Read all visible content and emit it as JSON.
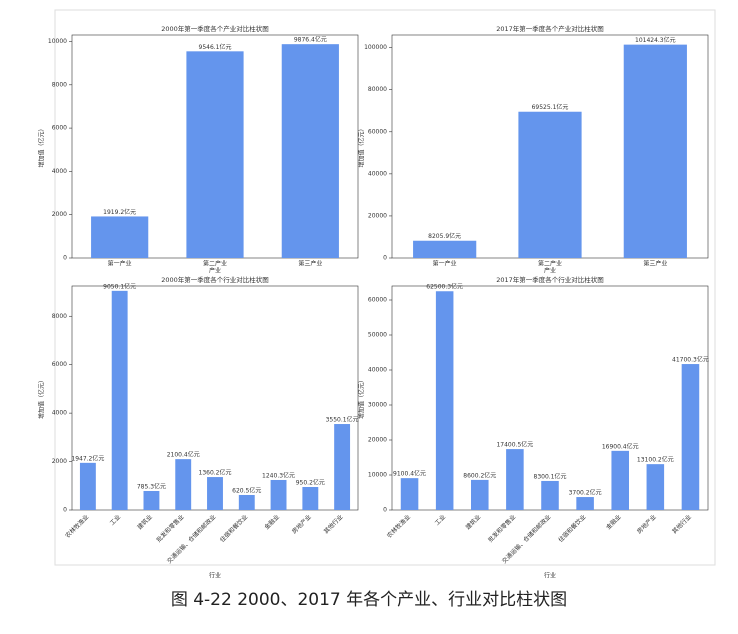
{
  "chart_data": [
    {
      "type": "bar",
      "title": "2000年第一季度各个产业对比柱状图",
      "x_label": "产业",
      "y_label": "增加值（亿元）",
      "categories": [
        "第一产业",
        "第二产业",
        "第三产业"
      ],
      "values": [
        1919.2,
        9546.1,
        9876.4
      ],
      "value_labels": [
        "1919.2亿元",
        "9546.1亿元",
        "9876.4亿元"
      ],
      "color": "#6495ed",
      "ylim": [
        0,
        10300
      ],
      "yticks": [
        0,
        2000,
        4000,
        6000,
        8000,
        10000
      ]
    },
    {
      "type": "bar",
      "title": "2017年第一季度各个产业对比柱状图",
      "x_label": "产业",
      "y_label": "增加值（亿元）",
      "categories": [
        "第一产业",
        "第二产业",
        "第三产业"
      ],
      "values": [
        8205.9,
        69525.1,
        101424.3
      ],
      "value_labels": [
        "8205.9亿元",
        "69525.1亿元",
        "101424.3亿元"
      ],
      "color": "#6495ed",
      "ylim": [
        0,
        106000
      ],
      "yticks": [
        0,
        20000,
        40000,
        60000,
        80000,
        100000
      ]
    },
    {
      "type": "bar",
      "title": "2000年第一季度各个行业对比柱状图",
      "x_label": "行业",
      "y_label": "增加值（亿元）",
      "categories": [
        "农林牧渔业",
        "工业",
        "建筑业",
        "批发和零售业",
        "交通运输、仓储和邮政业",
        "住宿和餐饮业",
        "金融业",
        "房地产业",
        "其他行业"
      ],
      "values": [
        1947.2,
        9050.1,
        785.3,
        2100.4,
        1360.2,
        620.5,
        1240.3,
        950.2,
        3550.1
      ],
      "value_labels": [
        "1947.2亿元",
        "9050.1亿元",
        "785.3亿元",
        "2100.4亿元",
        "1360.2亿元",
        "620.5亿元",
        "1240.3亿元",
        "950.2亿元",
        "3550.1亿元"
      ],
      "color": "#6495ed",
      "ylim": [
        0,
        9250
      ],
      "yticks": [
        0,
        2000,
        4000,
        6000,
        8000
      ]
    },
    {
      "type": "bar",
      "title": "2017年第一季度各个行业对比柱状图",
      "x_label": "行业",
      "y_label": "增加值（亿元）",
      "categories": [
        "农林牧渔业",
        "工业",
        "建筑业",
        "批发和零售业",
        "交通运输、仓储和邮政业",
        "住宿和餐饮业",
        "金融业",
        "房地产业",
        "其他行业"
      ],
      "values": [
        9100.4,
        62500.3,
        8600.2,
        17400.5,
        8300.1,
        3700.2,
        16900.4,
        13100.2,
        41700.3
      ],
      "value_labels": [
        "9100.4亿元",
        "62500.3亿元",
        "8600.2亿元",
        "17400.5亿元",
        "8300.1亿元",
        "3700.2亿元",
        "16900.4亿元",
        "13100.2亿元",
        "41700.3亿元"
      ],
      "color": "#6495ed",
      "ylim": [
        0,
        64000
      ],
      "yticks": [
        0,
        10000,
        20000,
        30000,
        40000,
        50000,
        60000
      ]
    }
  ],
  "caption": "图 4-22 2000、2017 年各个产业、行业对比柱状图"
}
